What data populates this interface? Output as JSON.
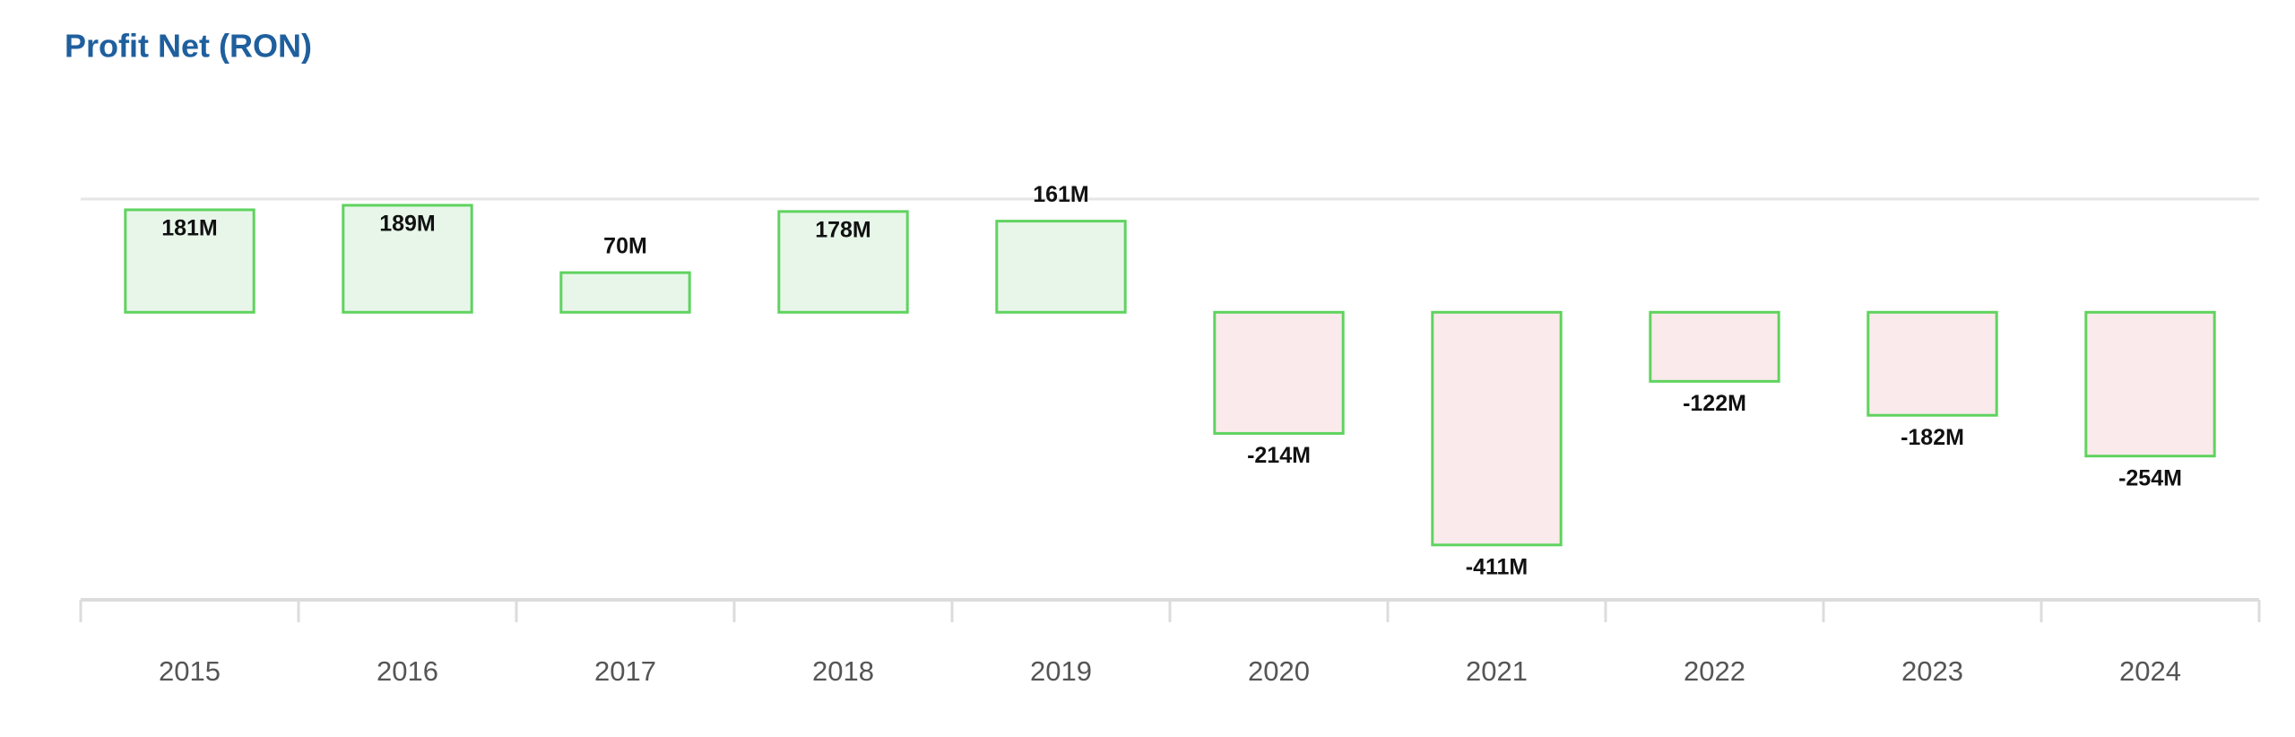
{
  "chart_data": {
    "type": "bar",
    "title": "Profit Net (RON)",
    "categories": [
      "2015",
      "2016",
      "2017",
      "2018",
      "2019",
      "2020",
      "2021",
      "2022",
      "2023",
      "2024"
    ],
    "values": [
      181,
      189,
      70,
      178,
      161,
      -214,
      -411,
      -122,
      -182,
      -254
    ],
    "value_labels": [
      "181M",
      "189M",
      "70M",
      "178M",
      "161M",
      "-214M",
      "-411M",
      "-122M",
      "-182M",
      "-254M"
    ],
    "border_color": "#5fd35f",
    "positive_color": "#e8f6ea",
    "negative_color": "#fbeaeb",
    "ylim": [
      -500,
      200
    ]
  }
}
